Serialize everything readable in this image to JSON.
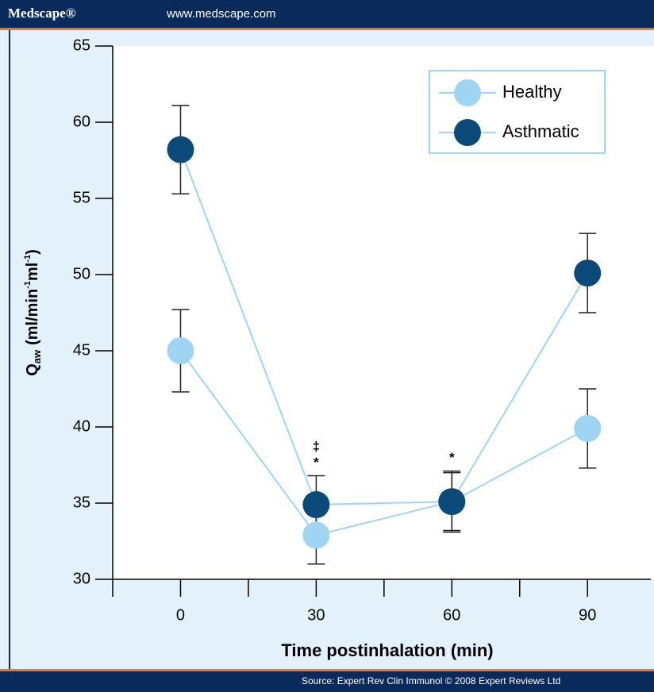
{
  "header": {
    "brand": "Medscape®",
    "url": "www.medscape.com"
  },
  "footer": {
    "source": "Source: Expert Rev Clin Immunol © 2008 Expert Reviews Ltd"
  },
  "chart_data": {
    "type": "line",
    "x_label": "Time postinhalation (min)",
    "y_label": {
      "main": "Q",
      "sub": "aw",
      "unit": "(ml/min",
      "sup1": "-1",
      "unit2": "ml",
      "sup2": "-1",
      "end": ")"
    },
    "x": [
      0,
      30,
      60,
      90
    ],
    "series": [
      {
        "name": "Healthy",
        "color": "#9fd5f2",
        "values": [
          45,
          32.9,
          35.1,
          39.9
        ],
        "errors": [
          2.7,
          1.9,
          2.0,
          2.6
        ]
      },
      {
        "name": "Asthmatic",
        "color": "#0b4a78",
        "values": [
          58.2,
          34.9,
          35.1,
          50.1
        ],
        "errors": [
          2.9,
          1.9,
          1.9,
          2.6
        ]
      }
    ],
    "line_color": "#9fd5f2",
    "annotations": [
      {
        "x": 30,
        "label": "*"
      },
      {
        "x": 30,
        "label": "‡"
      },
      {
        "x": 60,
        "label": "*"
      }
    ],
    "xlim": [
      -15,
      104
    ],
    "xticks": [
      0,
      30,
      60,
      90
    ],
    "xminor": [
      -15,
      15,
      45,
      75
    ],
    "ylim": [
      30,
      65
    ],
    "yticks": [
      30,
      35,
      40,
      45,
      50,
      55,
      60,
      65
    ],
    "legend": "top-right"
  }
}
